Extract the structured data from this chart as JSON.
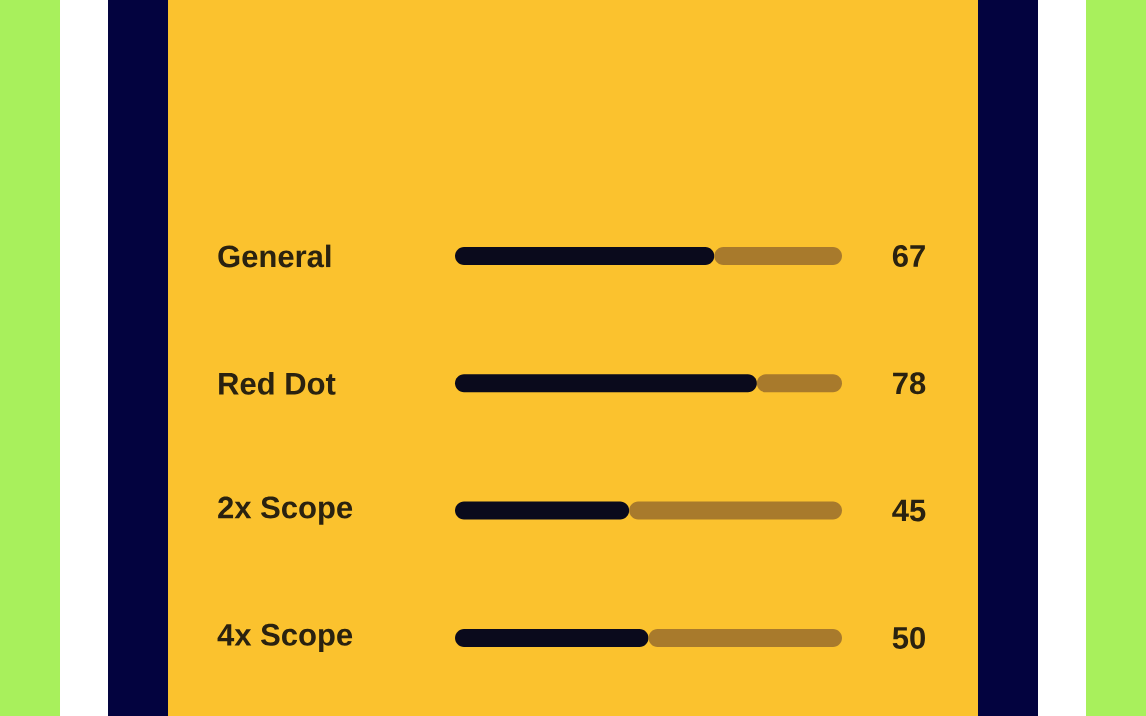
{
  "chart_data": {
    "type": "bar",
    "orientation": "horizontal",
    "stacked": true,
    "categories": [
      "General",
      "Red Dot",
      "2x Scope",
      "4x Scope"
    ],
    "series": [
      {
        "color": "#0a0a1c",
        "values": [
          67,
          78,
          45,
          50
        ],
        "value_labels": [
          "67",
          "78",
          "45",
          "50"
        ]
      },
      {
        "color": "#a87a2c",
        "values": [
          33,
          22,
          55,
          50
        ]
      }
    ],
    "xlim": [
      0,
      100
    ],
    "tick_labels": "y"
  }
}
